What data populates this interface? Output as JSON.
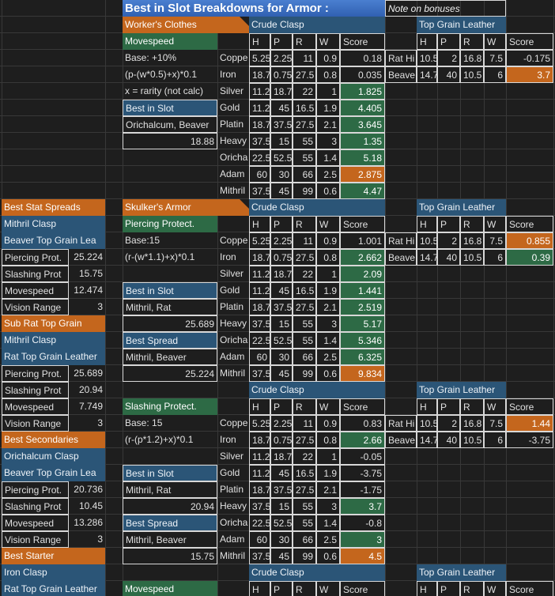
{
  "title": "Best in Slot Breakdowns for Armor :",
  "note": "Note on bonuses",
  "blocks": [
    {
      "name": "Worker's Clothes",
      "stat": "Movespeed",
      "base": "Base: +10%",
      "formula": "(p-(w*0.5)+x)*0.1",
      "extra": "x = rarity (not calc)",
      "best_in_slot": {
        "label": "Best in Slot",
        "items": "Orichalcum, Beaver",
        "value": "18.88"
      },
      "crude": {
        "title": "Crude Clasp",
        "headers": [
          "H",
          "P",
          "R",
          "W",
          "Score"
        ],
        "rows": [
          [
            "Coppe",
            "5.25",
            "2.25",
            "11",
            "0.9",
            "0.18"
          ],
          [
            "Iron",
            "18.7",
            "0.75",
            "27.5",
            "0.8",
            "0.035"
          ],
          [
            "Silver",
            "11.2",
            "18.7",
            "22",
            "1",
            "1.825"
          ],
          [
            "Gold",
            "11.2",
            "45",
            "16.5",
            "1.9",
            "4.405"
          ],
          [
            "Platin",
            "18.7",
            "37.5",
            "27.5",
            "2.1",
            "3.645"
          ],
          [
            "Heavy",
            "37.5",
            "15",
            "55",
            "3",
            "1.35"
          ],
          [
            "Oricha",
            "22.5",
            "52.5",
            "55",
            "1.4",
            "5.18"
          ],
          [
            "Adam",
            "60",
            "30",
            "66",
            "2.5",
            "2.875"
          ],
          [
            "Mithril",
            "37.5",
            "45",
            "99",
            "0.6",
            "4.47"
          ]
        ]
      },
      "leather": {
        "title": "Top Grain Leather",
        "headers": [
          "H",
          "P",
          "R",
          "W",
          "Score"
        ],
        "rows": [
          [
            "Rat Hi",
            "10.5",
            "2",
            "16.8",
            "7.5",
            "-0.175"
          ],
          [
            "Beave",
            "14.7",
            "40",
            "10.5",
            "6",
            "3.7"
          ]
        ]
      }
    },
    {
      "name": "Skulker's Armor",
      "stat": "Piercing Protect.",
      "base": "Base:15",
      "formula": "(r-(w*1.1)+x)*0.1",
      "best_in_slot": {
        "label": "Best in Slot",
        "items": "Mithril, Rat",
        "value": "25.689"
      },
      "best_spread": {
        "label": "Best Spread",
        "items": "Mithril, Beaver",
        "value": "25.224"
      },
      "crude": {
        "title": "Crude Clasp",
        "headers": [
          "H",
          "P",
          "R",
          "W",
          "Score"
        ],
        "rows": [
          [
            "Coppe",
            "5.25",
            "2.25",
            "11",
            "0.9",
            "1.001"
          ],
          [
            "Iron",
            "18.7",
            "0.75",
            "27.5",
            "0.8",
            "2.662"
          ],
          [
            "Silver",
            "11.2",
            "18.7",
            "22",
            "1",
            "2.09"
          ],
          [
            "Gold",
            "11.2",
            "45",
            "16.5",
            "1.9",
            "1.441"
          ],
          [
            "Platin",
            "18.7",
            "37.5",
            "27.5",
            "2.1",
            "2.519"
          ],
          [
            "Heavy",
            "37.5",
            "15",
            "55",
            "3",
            "5.17"
          ],
          [
            "Oricha",
            "22.5",
            "52.5",
            "55",
            "1.4",
            "5.346"
          ],
          [
            "Adam",
            "60",
            "30",
            "66",
            "2.5",
            "6.325"
          ],
          [
            "Mithril",
            "37.5",
            "45",
            "99",
            "0.6",
            "9.834"
          ]
        ]
      },
      "leather": {
        "title": "Top Grain Leather",
        "headers": [
          "H",
          "P",
          "R",
          "W",
          "Score"
        ],
        "rows": [
          [
            "Rat Hi",
            "10.5",
            "2",
            "16.8",
            "7.5",
            "0.855"
          ],
          [
            "Beave",
            "14.7",
            "40",
            "10.5",
            "6",
            "0.39"
          ]
        ]
      }
    },
    {
      "stat": "Slashing Protect.",
      "base": "Base: 15",
      "formula": "(r-(p*1.2)+x)*0.1",
      "best_in_slot": {
        "label": "Best in Slot",
        "items": "Mithril, Rat",
        "value": "20.94"
      },
      "best_spread": {
        "label": "Best Spread",
        "items": "Mithril, Beaver",
        "value": "15.75"
      },
      "crude": {
        "title": "Crude Clasp",
        "headers": [
          "H",
          "P",
          "R",
          "W",
          "Score"
        ],
        "rows": [
          [
            "Coppe",
            "5.25",
            "2.25",
            "11",
            "0.9",
            "0.83"
          ],
          [
            "Iron",
            "18.7",
            "0.75",
            "27.5",
            "0.8",
            "2.66"
          ],
          [
            "Silver",
            "11.2",
            "18.7",
            "22",
            "1",
            "-0.05"
          ],
          [
            "Gold",
            "11.2",
            "45",
            "16.5",
            "1.9",
            "-3.75"
          ],
          [
            "Platin",
            "18.7",
            "37.5",
            "27.5",
            "2.1",
            "-1.75"
          ],
          [
            "Heavy",
            "37.5",
            "15",
            "55",
            "3",
            "3.7"
          ],
          [
            "Oricha",
            "22.5",
            "52.5",
            "55",
            "1.4",
            "-0.8"
          ],
          [
            "Adam",
            "60",
            "30",
            "66",
            "2.5",
            "3"
          ],
          [
            "Mithril",
            "37.5",
            "45",
            "99",
            "0.6",
            "4.5"
          ]
        ]
      },
      "leather": {
        "title": "Top Grain Leather",
        "headers": [
          "H",
          "P",
          "R",
          "W",
          "Score"
        ],
        "rows": [
          [
            "Rat Hi",
            "10.5",
            "2",
            "16.8",
            "7.5",
            "1.44"
          ],
          [
            "Beave",
            "14.7",
            "40",
            "10.5",
            "6",
            "-3.75"
          ]
        ]
      }
    },
    {
      "stat": "Movespeed",
      "crude": {
        "title": "Crude Clasp",
        "headers": [
          "H",
          "P",
          "R",
          "W",
          "Score"
        ],
        "rows": []
      },
      "leather": {
        "title": "Top Grain Leather",
        "headers": [
          "H",
          "P",
          "R",
          "W",
          "Score"
        ],
        "rows": []
      }
    }
  ],
  "sidebar": [
    {
      "header": "Best Stat Spreads",
      "items": [
        "Mithril Clasp",
        "Beaver Top Grain Lea"
      ],
      "stats": [
        [
          "Piercing Prot.",
          "25.224"
        ],
        [
          "Slashing Prot",
          "15.75"
        ],
        [
          "Movespeed",
          "12.474"
        ],
        [
          "Vision Range",
          "3"
        ]
      ]
    },
    {
      "header": "Sub Rat Top Grain",
      "items": [
        "Mithril Clasp",
        "Rat Top Grain Leather"
      ],
      "stats": [
        [
          "Piercing Prot.",
          "25.689"
        ],
        [
          "Slashing Prot",
          "20.94"
        ],
        [
          "Movespeed",
          "7.749"
        ],
        [
          "Vision Range",
          "3"
        ]
      ]
    },
    {
      "header": "Best Secondaries",
      "items": [
        "Orichalcum Clasp",
        "Beaver Top Grain Lea"
      ],
      "stats": [
        [
          "Piercing Prot.",
          "20.736"
        ],
        [
          "Slashing Prot",
          "10.45"
        ],
        [
          "Movespeed",
          "13.286"
        ],
        [
          "Vision Range",
          "3"
        ]
      ]
    },
    {
      "header": "Best Starter",
      "items": [
        "Iron Clasp",
        "Rat Top Grain Leather"
      ],
      "stats": []
    }
  ]
}
